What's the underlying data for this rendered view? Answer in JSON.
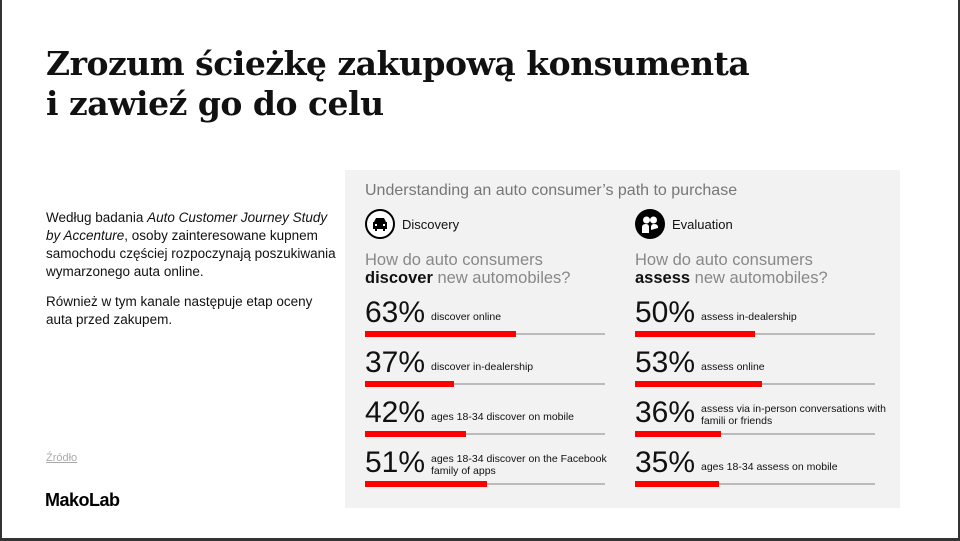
{
  "title": {
    "line1": "Zrozum ścieżkę zakupową konsumenta",
    "line2": "i zawieź go do celu"
  },
  "description": {
    "p1_pre": "Według badania ",
    "p1_em": "Auto Customer Journey Study by Accenture",
    "p1_post": ", osoby zainteresowane kupnem samochodu częściej rozpoczynają poszukiwania wymarzonego auta online.",
    "p2": "Również w tym kanale następuje etap oceny auta przed zakupem."
  },
  "source_link": "Źródło",
  "logo": "MakoLab",
  "infographic": {
    "title": "Understanding an auto consumer’s path to purchase",
    "discovery": {
      "heading": "Discovery",
      "icon": "car-icon",
      "q1": "How do auto consumers",
      "q_bold": "discover",
      "q_rest": " new automobiles?",
      "stats": [
        {
          "value": 63,
          "label": "63%",
          "text": "discover online"
        },
        {
          "value": 37,
          "label": "37%",
          "text": "discover in-dealership"
        },
        {
          "value": 42,
          "label": "42%",
          "text": "ages 18-34 discover on mobile"
        },
        {
          "value": 51,
          "label": "51%",
          "text": "ages 18-34 discover on the Facebook family of apps"
        }
      ]
    },
    "evaluation": {
      "heading": "Evaluation",
      "icon": "people-icon",
      "q1": "How do auto consumers",
      "q_bold": "assess",
      "q_rest": " new automobiles?",
      "stats": [
        {
          "value": 50,
          "label": "50%",
          "text": "assess in-dealership"
        },
        {
          "value": 53,
          "label": "53%",
          "text": "assess online"
        },
        {
          "value": 36,
          "label": "36%",
          "text": "assess via in-person conversations with famili or friends"
        },
        {
          "value": 35,
          "label": "35%",
          "text": "ages 18-34 assess on mobile"
        }
      ]
    }
  },
  "colors": {
    "bar": "#ff0000",
    "track": "#bbbbbb",
    "panel": "#f2f2f2"
  }
}
